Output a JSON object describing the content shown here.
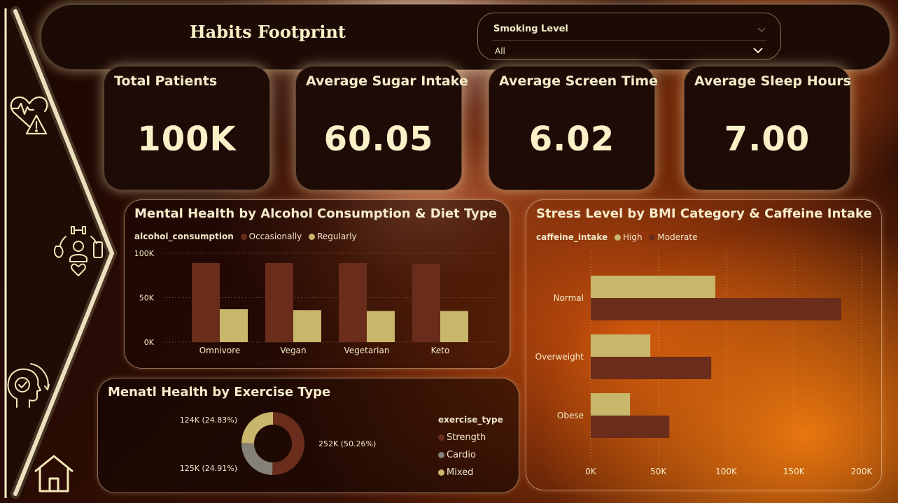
{
  "header": {
    "title": "Habits Footprint",
    "filter_label": "Smoking Level",
    "filter_value": "All"
  },
  "nav": {
    "icons": [
      "heart-warning-icon",
      "wellness-activities-icon",
      "mental-health-check-icon",
      "home-icon"
    ]
  },
  "kpis": [
    {
      "title": "Total Patients",
      "value": "100K"
    },
    {
      "title": "Average Sugar Intake",
      "value": "60.05"
    },
    {
      "title": "Average Screen Time",
      "value": "6.02"
    },
    {
      "title": "Average Sleep Hours",
      "value": "7.00"
    }
  ],
  "colors": {
    "occasionally": "#6a2c1b",
    "regularly": "#c8b66c",
    "high": "#c8b66c",
    "moderate": "#6a2c1b",
    "strength": "#6a2c1b",
    "cardio": "#858078",
    "mixed": "#c8b66c",
    "text": "#f4ecc8"
  },
  "chart_data": [
    {
      "type": "bar",
      "title": "Mental Health by Alcohol Consumption & Diet Type",
      "legend_title": "alcohol_consumption",
      "categories": [
        "Omnivore",
        "Vegan",
        "Vegetarian",
        "Keto"
      ],
      "series": [
        {
          "name": "Occasionally",
          "values": [
            89000,
            89000,
            89000,
            88000
          ]
        },
        {
          "name": "Regularly",
          "values": [
            37000,
            36000,
            35000,
            35000
          ]
        }
      ],
      "yticks": [
        "0K",
        "50K",
        "100K"
      ],
      "ylim": [
        0,
        100000
      ],
      "legend_position": "top-left"
    },
    {
      "type": "bar",
      "orientation": "horizontal",
      "title": "Stress Level by BMI Category & Caffeine Intake",
      "legend_title": "caffeine_intake",
      "categories": [
        "Normal",
        "Overweight",
        "Obese"
      ],
      "series": [
        {
          "name": "High",
          "values": [
            92000,
            44000,
            29000
          ]
        },
        {
          "name": "Moderate",
          "values": [
            185000,
            89000,
            58000
          ]
        }
      ],
      "xticks": [
        "0K",
        "50K",
        "100K",
        "150K",
        "200K"
      ],
      "xlim": [
        0,
        200000
      ],
      "grid": true,
      "legend_position": "top-left"
    },
    {
      "type": "pie",
      "donut": true,
      "title": "Menatl Health by Exercise Type",
      "legend_title": "exercise_type",
      "slices": [
        {
          "name": "Strength",
          "value": 252000,
          "label": "252K (50.26%)"
        },
        {
          "name": "Cardio",
          "value": 125000,
          "label": "125K (24.91%)"
        },
        {
          "name": "Mixed",
          "value": 124000,
          "label": "124K (24.83%)"
        }
      ],
      "legend_position": "right"
    }
  ]
}
